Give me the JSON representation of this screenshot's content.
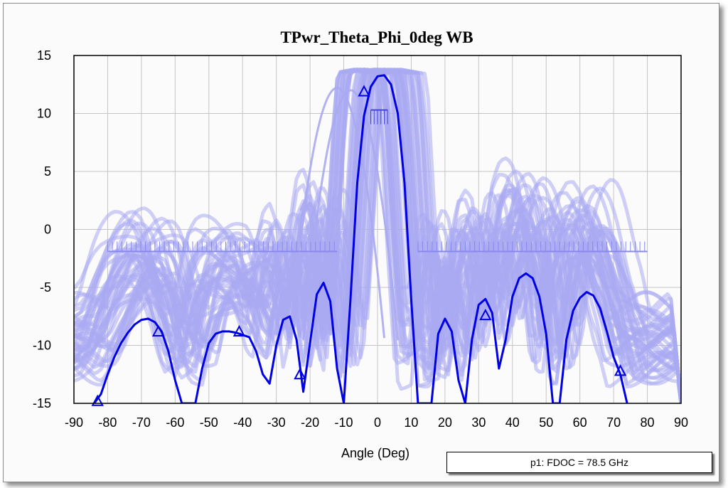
{
  "chart_data": {
    "type": "line",
    "title": "TPwr_Theta_Phi_0deg WB",
    "xlabel": "Angle (Deg)",
    "ylabel": "",
    "xlim": [
      -90,
      90
    ],
    "ylim": [
      -15,
      15
    ],
    "xticks": [
      -90,
      -80,
      -70,
      -60,
      -50,
      -40,
      -30,
      -20,
      -10,
      0,
      10,
      20,
      30,
      40,
      50,
      60,
      70,
      80,
      90
    ],
    "yticks": [
      -15,
      -10,
      -5,
      0,
      5,
      10,
      15
    ],
    "grid": true,
    "colors": {
      "main": "#0000e6",
      "ensemble": "#aaaaf2",
      "mask": "#8888ee",
      "grid": "#c4c4c4"
    },
    "series": [
      {
        "label": "p1: FDOC = 78.5 GHz",
        "x": [
          -84,
          -82,
          -80,
          -78,
          -76,
          -74,
          -72,
          -70,
          -68,
          -66,
          -64,
          -62,
          -60,
          -58,
          -56,
          -54,
          -52,
          -50,
          -48,
          -46,
          -44,
          -42,
          -40,
          -38,
          -36,
          -34,
          -32,
          -30,
          -28,
          -26,
          -24,
          -22,
          -20,
          -18,
          -16,
          -14,
          -12,
          -10,
          -8,
          -6,
          -4,
          -2,
          0,
          2,
          4,
          6,
          8,
          10,
          12,
          14,
          16,
          18,
          20,
          22,
          24,
          26,
          28,
          30,
          32,
          34,
          36,
          38,
          40,
          42,
          44,
          46,
          48,
          50,
          52,
          54,
          56,
          58,
          60,
          62,
          64,
          66,
          68,
          70,
          72,
          74
        ],
        "y": [
          -15,
          -14.2,
          -12.5,
          -11,
          -9.8,
          -8.9,
          -8.2,
          -7.8,
          -7.7,
          -8.0,
          -8.8,
          -10.5,
          -13,
          -15,
          -15,
          -15,
          -12,
          -9.8,
          -9.0,
          -8.8,
          -8.8,
          -8.9,
          -9.1,
          -9.3,
          -10.5,
          -12.5,
          -13.3,
          -10,
          -7.8,
          -7.5,
          -9.5,
          -14,
          -9.8,
          -5.6,
          -4.6,
          -6.2,
          -12,
          -15,
          -6,
          4,
          9.8,
          12.3,
          13.2,
          13.3,
          12.5,
          10,
          4,
          -6,
          -15,
          -15,
          -15,
          -9,
          -7.7,
          -8.8,
          -13,
          -15,
          -9.5,
          -6.5,
          -6.0,
          -7.2,
          -12,
          -9.5,
          -5.8,
          -4.2,
          -3.8,
          -4.2,
          -5.8,
          -9,
          -15,
          -15,
          -9.5,
          -7.0,
          -5.9,
          -5.4,
          -5.7,
          -6.8,
          -8.8,
          -11,
          -12.5,
          -15
        ],
        "markers_x": [
          -83,
          -65,
          -41,
          -23,
          -4,
          32,
          72
        ],
        "markers_y": [
          -14.8,
          -8.8,
          -8.8,
          -12.5,
          11.9,
          -7.4,
          -12.2
        ]
      }
    ],
    "legend": {
      "placement": "bottom-right",
      "text": "p1: FDOC = 78.5 GHz"
    }
  }
}
